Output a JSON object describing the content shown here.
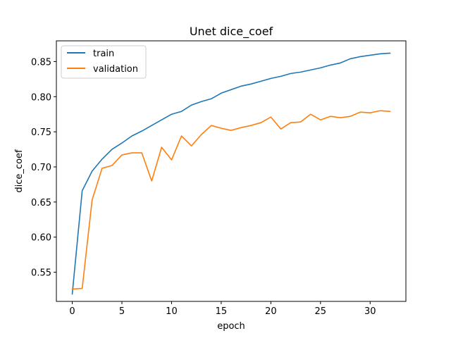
{
  "chart_data": {
    "type": "line",
    "title": "Unet dice_coef",
    "xlabel": "epoch",
    "ylabel": "dice_coef",
    "xlim": [
      -1.6,
      33.6
    ],
    "ylim": [
      0.5085,
      0.8795
    ],
    "xticks": [
      0,
      5,
      10,
      15,
      20,
      25,
      30
    ],
    "xtick_labels": [
      "0",
      "5",
      "10",
      "15",
      "20",
      "25",
      "30"
    ],
    "yticks": [
      0.55,
      0.6,
      0.65,
      0.7,
      0.75,
      0.8,
      0.85
    ],
    "ytick_labels": [
      "0.55",
      "0.60",
      "0.65",
      "0.70",
      "0.75",
      "0.80",
      "0.85"
    ],
    "grid": false,
    "legend_position": "upper-left",
    "x": [
      0,
      1,
      2,
      3,
      4,
      5,
      6,
      7,
      8,
      9,
      10,
      11,
      12,
      13,
      14,
      15,
      16,
      17,
      18,
      19,
      20,
      21,
      22,
      23,
      24,
      25,
      26,
      27,
      28,
      29,
      30,
      31,
      32
    ],
    "series": [
      {
        "name": "train",
        "color": "#1f77b4",
        "values": [
          0.519,
          0.666,
          0.694,
          0.711,
          0.725,
          0.734,
          0.744,
          0.751,
          0.759,
          0.767,
          0.775,
          0.779,
          0.788,
          0.793,
          0.797,
          0.805,
          0.81,
          0.815,
          0.818,
          0.822,
          0.826,
          0.829,
          0.833,
          0.835,
          0.838,
          0.841,
          0.845,
          0.848,
          0.854,
          0.857,
          0.859,
          0.861,
          0.862
        ]
      },
      {
        "name": "validation",
        "color": "#ff7f0e",
        "values": [
          0.526,
          0.527,
          0.653,
          0.698,
          0.702,
          0.717,
          0.72,
          0.72,
          0.68,
          0.728,
          0.71,
          0.744,
          0.73,
          0.746,
          0.759,
          0.755,
          0.752,
          0.756,
          0.759,
          0.763,
          0.771,
          0.754,
          0.763,
          0.764,
          0.775,
          0.767,
          0.772,
          0.77,
          0.772,
          0.778,
          0.777,
          0.78,
          0.779
        ]
      }
    ]
  }
}
